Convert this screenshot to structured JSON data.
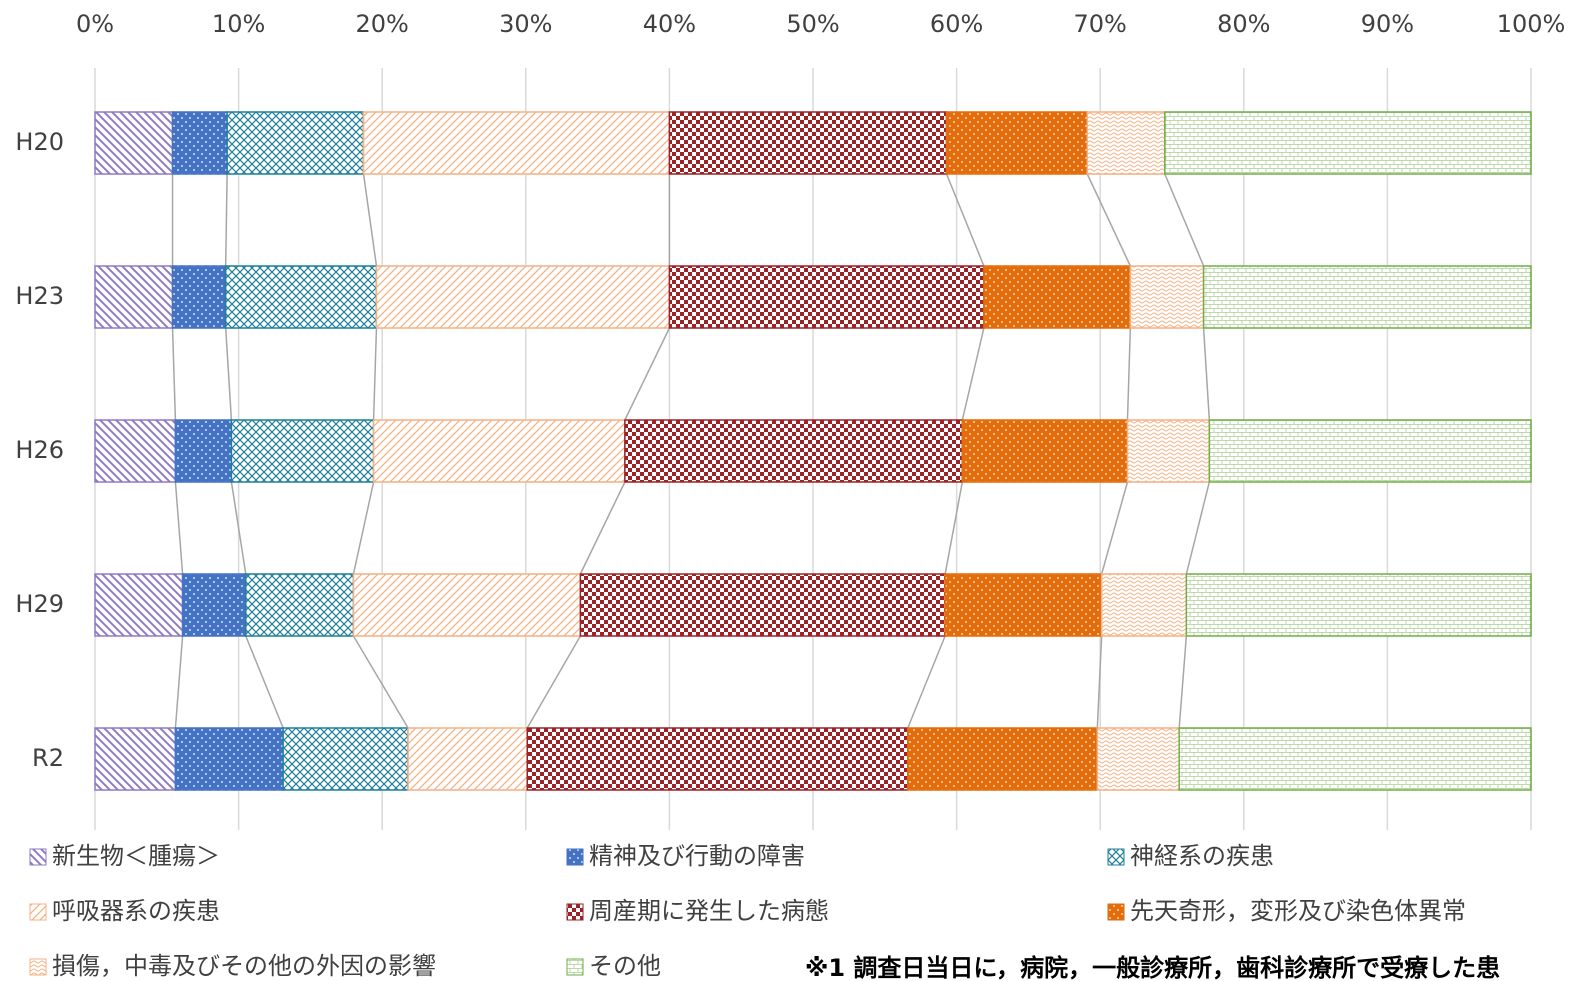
{
  "chart_data": {
    "type": "stacked_barh",
    "categories": [
      "H20",
      "H23",
      "H26",
      "H29",
      "R2"
    ],
    "series": [
      {
        "name": "新生物＜腫瘍＞",
        "color": "#8e7cc3",
        "values": [
          5.4,
          5.4,
          5.6,
          6.1,
          5.6
        ]
      },
      {
        "name": "精神及び行動の障害",
        "color": "#4472c4",
        "values": [
          3.8,
          3.7,
          3.9,
          4.4,
          7.5
        ]
      },
      {
        "name": "神経系の疾患",
        "color": "#1f7f9a",
        "values": [
          9.5,
          10.5,
          9.9,
          7.5,
          8.7
        ]
      },
      {
        "name": "呼吸器系の疾患",
        "color": "#f4b183",
        "values": [
          21.3,
          20.4,
          17.5,
          15.8,
          8.3
        ]
      },
      {
        "name": "周産期に発生した病態",
        "color": "#9b2226",
        "values": [
          19.3,
          21.9,
          23.5,
          25.4,
          26.5
        ]
      },
      {
        "name": "先天奇形，変形及び染色体異常",
        "color": "#e46c0a",
        "values": [
          9.8,
          10.2,
          11.5,
          10.9,
          13.2
        ]
      },
      {
        "name": "損傷，中毒及びその他の外因の影響",
        "color": "#f4b183",
        "values": [
          5.4,
          5.1,
          5.7,
          5.9,
          5.7
        ]
      },
      {
        "name": "その他",
        "color": "#70ad47",
        "values": [
          25.5,
          22.8,
          22.4,
          24.0,
          24.5
        ]
      }
    ],
    "xlim": [
      0,
      100
    ],
    "xticks": [
      {
        "value": 0,
        "label": "0%"
      },
      {
        "value": 10,
        "label": "10%"
      },
      {
        "value": 20,
        "label": "20%"
      },
      {
        "value": 30,
        "label": "30%"
      },
      {
        "value": 40,
        "label": "40%"
      },
      {
        "value": 50,
        "label": "50%"
      },
      {
        "value": 60,
        "label": "60%"
      },
      {
        "value": 70,
        "label": "70%"
      },
      {
        "value": 80,
        "label": "80%"
      },
      {
        "value": 90,
        "label": "90%"
      },
      {
        "value": 100,
        "label": "100%"
      }
    ],
    "grid": true,
    "note": "※1 調査日当日に，病院，一般診療所，歯科診療所で受療した患"
  }
}
